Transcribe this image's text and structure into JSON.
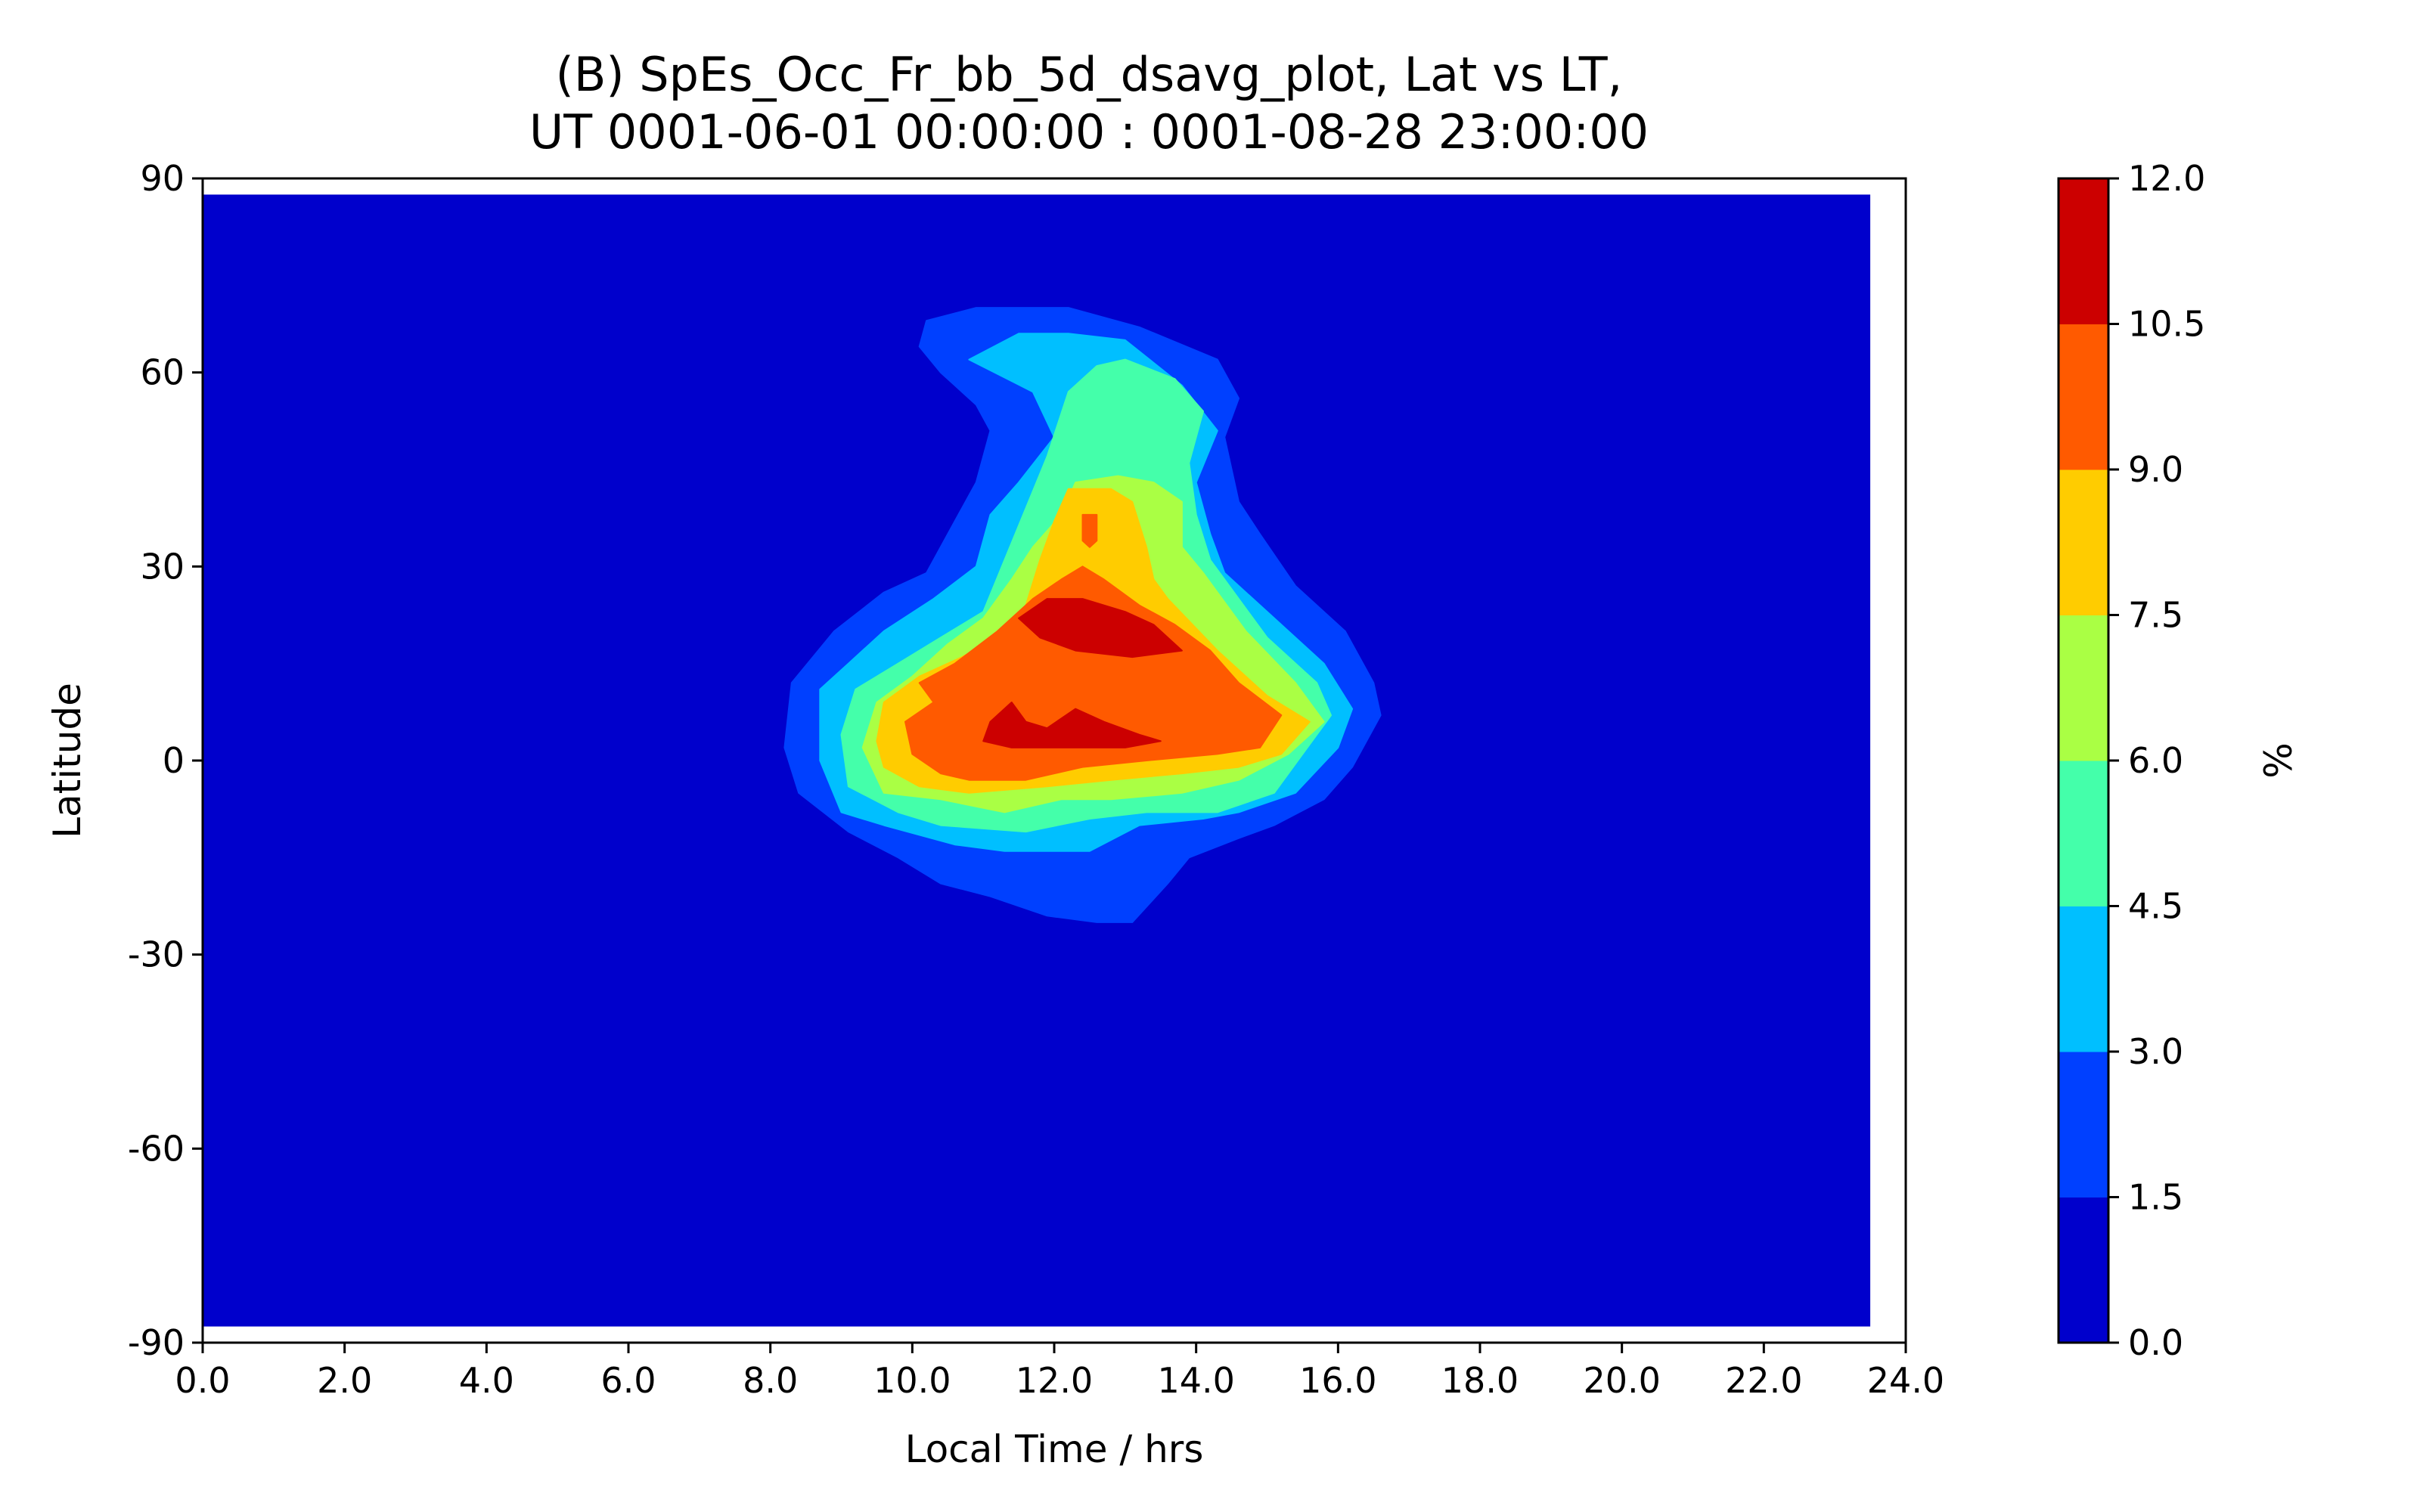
{
  "chart_data": {
    "type": "contour",
    "title_lines": [
      "(B) SpEs_Occ_Fr_bb_5d_dsavg_plot, Lat vs LT,",
      "UT 0001-06-01 00:00:00 : 0001-08-28 23:00:00"
    ],
    "xlabel": "Local Time / hrs",
    "ylabel": "Latitude",
    "xlim": [
      0,
      24
    ],
    "ylim": [
      -90,
      90
    ],
    "data_extent": {
      "x": [
        0,
        23.5
      ],
      "y": [
        -87.5,
        87.5
      ]
    },
    "x_ticks": [
      "0.0",
      "2.0",
      "4.0",
      "6.0",
      "8.0",
      "10.0",
      "12.0",
      "14.0",
      "16.0",
      "18.0",
      "20.0",
      "22.0",
      "24.0"
    ],
    "y_ticks": [
      "-90",
      "-60",
      "-30",
      "0",
      "30",
      "60",
      "90"
    ],
    "colorbar": {
      "label": "%",
      "levels": [
        0.0,
        1.5,
        3.0,
        4.5,
        6.0,
        7.5,
        9.0,
        10.5,
        12.0
      ],
      "tick_labels": [
        "0.0",
        "1.5",
        "3.0",
        "4.5",
        "6.0",
        "7.5",
        "9.0",
        "10.5",
        "12.0"
      ],
      "colors": [
        "#0000cc",
        "#0040ff",
        "#00bfff",
        "#44ffaa",
        "#aaff44",
        "#ffcc00",
        "#ff5a00",
        "#cc0000"
      ]
    },
    "contours": [
      {
        "level": 1.5,
        "color": "#0040ff",
        "points": [
          [
            10.2,
            68
          ],
          [
            10.9,
            70
          ],
          [
            12.2,
            70
          ],
          [
            13.2,
            67
          ],
          [
            14.3,
            62
          ],
          [
            14.6,
            56
          ],
          [
            14.4,
            50
          ],
          [
            14.6,
            40
          ],
          [
            14.9,
            35
          ],
          [
            15.4,
            27
          ],
          [
            16.1,
            20
          ],
          [
            16.5,
            12
          ],
          [
            16.6,
            7
          ],
          [
            16.2,
            -1
          ],
          [
            15.8,
            -6
          ],
          [
            15.1,
            -10
          ],
          [
            14.6,
            -12
          ],
          [
            13.9,
            -15
          ],
          [
            13.6,
            -19
          ],
          [
            13.1,
            -25
          ],
          [
            12.6,
            -25
          ],
          [
            11.9,
            -24
          ],
          [
            11.1,
            -21
          ],
          [
            10.4,
            -19
          ],
          [
            9.8,
            -15
          ],
          [
            9.1,
            -11
          ],
          [
            8.4,
            -5
          ],
          [
            8.2,
            2
          ],
          [
            8.3,
            12
          ],
          [
            8.9,
            20
          ],
          [
            9.6,
            26
          ],
          [
            10.2,
            29
          ],
          [
            10.6,
            37
          ],
          [
            10.9,
            43
          ],
          [
            11.1,
            51
          ],
          [
            10.9,
            55
          ],
          [
            10.4,
            60
          ],
          [
            10.1,
            64
          ]
        ]
      },
      {
        "level": 3.0,
        "color": "#00bfff",
        "points": [
          [
            10.8,
            62
          ],
          [
            11.5,
            66
          ],
          [
            12.2,
            66
          ],
          [
            13.0,
            65
          ],
          [
            13.8,
            58
          ],
          [
            14.3,
            51
          ],
          [
            14.0,
            43
          ],
          [
            14.2,
            35
          ],
          [
            14.4,
            29
          ],
          [
            15.1,
            22
          ],
          [
            15.8,
            15
          ],
          [
            16.2,
            8
          ],
          [
            16.0,
            2
          ],
          [
            15.4,
            -5
          ],
          [
            14.6,
            -8
          ],
          [
            14.1,
            -9
          ],
          [
            13.2,
            -10
          ],
          [
            12.5,
            -14
          ],
          [
            11.3,
            -14
          ],
          [
            10.6,
            -13
          ],
          [
            9.6,
            -10
          ],
          [
            9.0,
            -8
          ],
          [
            8.7,
            0
          ],
          [
            8.7,
            11
          ],
          [
            9.1,
            15
          ],
          [
            9.6,
            20
          ],
          [
            10.3,
            25
          ],
          [
            10.9,
            30
          ],
          [
            11.1,
            38
          ],
          [
            11.5,
            43
          ],
          [
            12.0,
            50
          ],
          [
            11.7,
            57
          ]
        ]
      },
      {
        "level": 4.5,
        "color": "#44ffaa",
        "points": [
          [
            12.2,
            57
          ],
          [
            12.6,
            61
          ],
          [
            13.0,
            62
          ],
          [
            13.7,
            59
          ],
          [
            14.1,
            54
          ],
          [
            13.9,
            46
          ],
          [
            14.0,
            38
          ],
          [
            14.2,
            31
          ],
          [
            15.0,
            19
          ],
          [
            15.7,
            12
          ],
          [
            15.9,
            7
          ],
          [
            15.5,
            1
          ],
          [
            15.1,
            -5
          ],
          [
            14.3,
            -8
          ],
          [
            13.3,
            -8
          ],
          [
            12.5,
            -9
          ],
          [
            11.6,
            -11
          ],
          [
            10.4,
            -10
          ],
          [
            9.8,
            -8
          ],
          [
            9.1,
            -4
          ],
          [
            9.0,
            4
          ],
          [
            9.2,
            11
          ],
          [
            9.8,
            15
          ],
          [
            10.4,
            19
          ],
          [
            11.0,
            23
          ],
          [
            11.3,
            31
          ],
          [
            11.6,
            39
          ],
          [
            11.9,
            47
          ]
        ]
      },
      {
        "level": 6.0,
        "color": "#aaff44",
        "points": [
          [
            12.3,
            43
          ],
          [
            12.9,
            44
          ],
          [
            13.4,
            43
          ],
          [
            13.8,
            40
          ],
          [
            13.8,
            33
          ],
          [
            14.1,
            29
          ],
          [
            14.7,
            20
          ],
          [
            15.4,
            12
          ],
          [
            15.8,
            6
          ],
          [
            15.3,
            1
          ],
          [
            14.6,
            -3
          ],
          [
            13.8,
            -5
          ],
          [
            12.8,
            -6
          ],
          [
            12.1,
            -6
          ],
          [
            11.3,
            -8
          ],
          [
            10.4,
            -6
          ],
          [
            9.6,
            -5
          ],
          [
            9.3,
            2
          ],
          [
            9.5,
            9
          ],
          [
            10.0,
            13
          ],
          [
            10.5,
            18
          ],
          [
            11.0,
            22
          ],
          [
            11.4,
            28
          ],
          [
            11.7,
            33
          ],
          [
            12.1,
            38
          ]
        ]
      },
      {
        "level": 7.5,
        "color": "#ffcc00",
        "points": [
          [
            12.2,
            42
          ],
          [
            12.8,
            42
          ],
          [
            13.1,
            40
          ],
          [
            13.3,
            33
          ],
          [
            13.4,
            28
          ],
          [
            13.6,
            25
          ],
          [
            14.3,
            17
          ],
          [
            15.0,
            10
          ],
          [
            15.6,
            6
          ],
          [
            15.2,
            1
          ],
          [
            14.6,
            -1
          ],
          [
            13.8,
            -2
          ],
          [
            12.8,
            -3
          ],
          [
            11.9,
            -4
          ],
          [
            10.8,
            -5
          ],
          [
            10.1,
            -4
          ],
          [
            9.6,
            -1
          ],
          [
            9.5,
            3
          ],
          [
            9.6,
            9
          ],
          [
            10.1,
            13
          ],
          [
            10.7,
            16
          ],
          [
            11.2,
            19
          ],
          [
            11.6,
            24
          ],
          [
            11.8,
            31
          ],
          [
            12.0,
            37
          ]
        ]
      },
      {
        "level": 9.0,
        "color": "#ff5a00",
        "points": [
          [
            12.4,
            30
          ],
          [
            12.7,
            28
          ],
          [
            13.2,
            24
          ],
          [
            13.7,
            21
          ],
          [
            14.2,
            17
          ],
          [
            14.6,
            12
          ],
          [
            15.2,
            7
          ],
          [
            14.9,
            2
          ],
          [
            14.3,
            1
          ],
          [
            13.3,
            0
          ],
          [
            12.4,
            -1
          ],
          [
            11.6,
            -3
          ],
          [
            10.8,
            -3
          ],
          [
            10.4,
            -2
          ],
          [
            10.0,
            1
          ],
          [
            9.9,
            6
          ],
          [
            10.3,
            9
          ],
          [
            10.1,
            12
          ],
          [
            10.6,
            15
          ],
          [
            11.2,
            20
          ],
          [
            11.7,
            25
          ],
          [
            12.1,
            28
          ]
        ]
      },
      {
        "level": 9.0,
        "color": "#ff5a00",
        "points": [
          [
            12.4,
            38
          ],
          [
            12.6,
            38
          ],
          [
            12.6,
            34
          ],
          [
            12.5,
            33
          ],
          [
            12.4,
            34
          ]
        ]
      },
      {
        "level": 10.5,
        "color": "#cc0000",
        "points": [
          [
            11.5,
            22
          ],
          [
            11.9,
            25
          ],
          [
            12.4,
            25
          ],
          [
            13.0,
            23
          ],
          [
            13.4,
            21
          ],
          [
            13.8,
            17
          ],
          [
            13.1,
            16
          ],
          [
            12.3,
            17
          ],
          [
            11.8,
            19
          ]
        ]
      },
      {
        "level": 10.5,
        "color": "#cc0000",
        "points": [
          [
            11.0,
            3
          ],
          [
            11.4,
            2
          ],
          [
            11.9,
            2
          ],
          [
            12.4,
            2
          ],
          [
            13.0,
            2
          ],
          [
            13.5,
            3
          ],
          [
            13.2,
            4
          ],
          [
            12.7,
            6
          ],
          [
            12.3,
            8
          ],
          [
            11.9,
            5
          ],
          [
            11.6,
            6
          ],
          [
            11.4,
            9
          ],
          [
            11.1,
            6
          ]
        ]
      }
    ]
  }
}
